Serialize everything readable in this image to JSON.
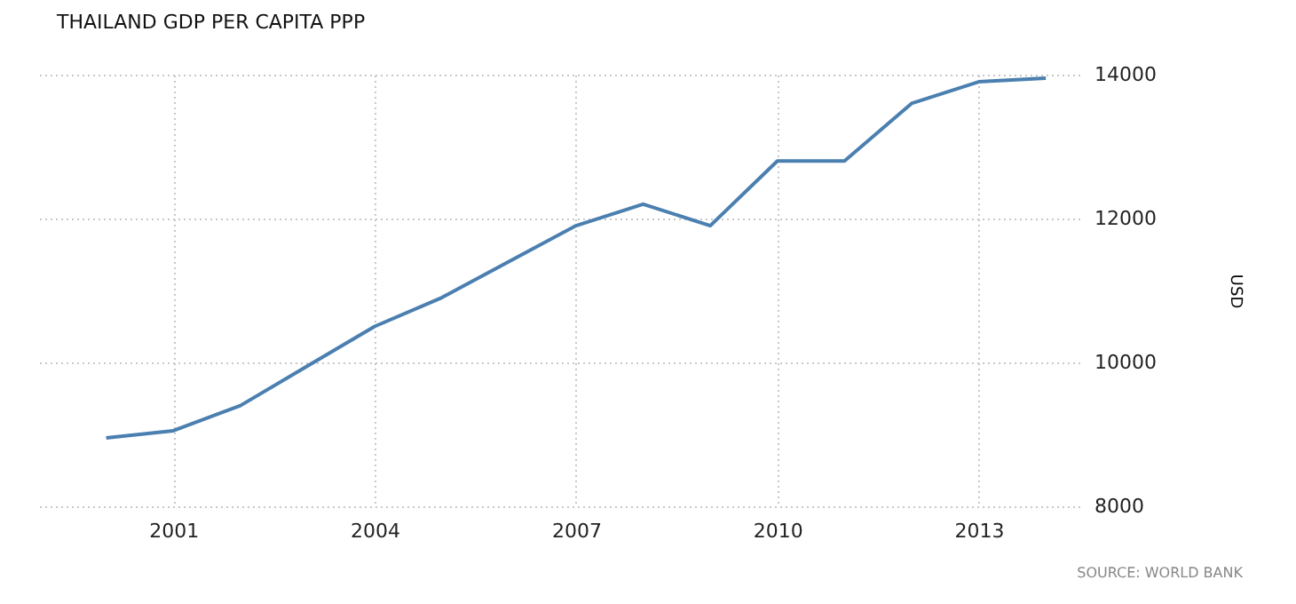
{
  "chart_data": {
    "type": "line",
    "title": "THAILAND GDP PER CAPITA PPP",
    "ylabel": "USD",
    "x": [
      2000,
      2001,
      2002,
      2003,
      2004,
      2005,
      2006,
      2007,
      2008,
      2009,
      2010,
      2011,
      2012,
      2013,
      2014
    ],
    "series": [
      {
        "color": "#4a7fb0",
        "values": [
          8950,
          9050,
          9400,
          9950,
          10500,
          10900,
          11400,
          11900,
          12200,
          11900,
          12800,
          12800,
          13600,
          13900,
          13950
        ]
      }
    ],
    "xlim": [
      1999,
      2014.5
    ],
    "xticks": [
      2001,
      2004,
      2007,
      2010,
      2013
    ],
    "ylim": [
      8000,
      14000
    ],
    "yticks": [
      8000,
      10000,
      12000,
      14000
    ],
    "grid": true,
    "line_style": "solid",
    "marker": "none",
    "annotations": [
      "SOURCE: WORLD BANK"
    ]
  }
}
